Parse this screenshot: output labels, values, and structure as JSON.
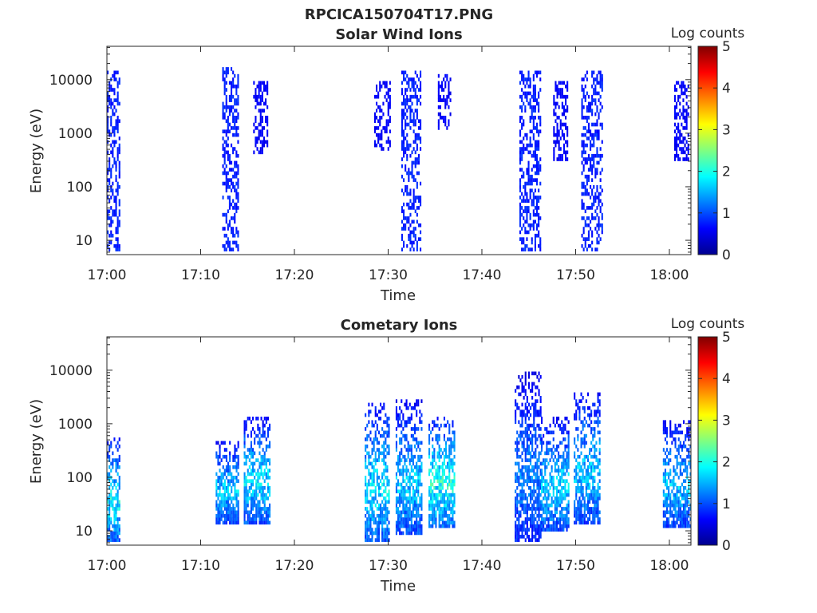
{
  "figure": {
    "title": "RPCICA150704T17.PNG"
  },
  "colormap": [
    "#00008f",
    "#0000ff",
    "#0080ff",
    "#00ffff",
    "#80ff80",
    "#ffff00",
    "#ff8000",
    "#ff0000",
    "#800000"
  ],
  "chart_data": [
    {
      "type": "heatmap",
      "title": "Solar Wind Ions",
      "xlabel": "Time",
      "ylabel": "Energy (eV)",
      "colorbar_label": "Log counts",
      "x_ticks": [
        "17:00",
        "17:10",
        "17:20",
        "17:30",
        "17:40",
        "17:50",
        "18:00"
      ],
      "x_range_minutes": [
        0,
        62.3
      ],
      "y_ticks": [
        10,
        100,
        1000,
        10000
      ],
      "y_tick_labels": [
        "10",
        "100",
        "1000",
        "10000"
      ],
      "y_scale": "log",
      "y_range": [
        5.4,
        42000
      ],
      "colorbar_ticks": [
        "0",
        "1",
        "2",
        "3",
        "4",
        "5"
      ],
      "c_range": [
        0,
        5
      ],
      "bursts": [
        {
          "t_start": 0.0,
          "t_end": 1.4,
          "e_min": 6,
          "e_max": 15000,
          "peak": 0.9
        },
        {
          "t_start": 12.3,
          "t_end": 14.0,
          "e_min": 6,
          "e_max": 17000,
          "peak": 0.9
        },
        {
          "t_start": 15.6,
          "t_end": 17.1,
          "e_min": 400,
          "e_max": 10000,
          "peak": 0.7
        },
        {
          "t_start": 28.5,
          "t_end": 30.2,
          "e_min": 500,
          "e_max": 10000,
          "peak": 0.7
        },
        {
          "t_start": 31.4,
          "t_end": 33.4,
          "e_min": 6,
          "e_max": 15000,
          "peak": 0.9
        },
        {
          "t_start": 35.3,
          "t_end": 36.6,
          "e_min": 1200,
          "e_max": 12000,
          "peak": 0.7
        },
        {
          "t_start": 44.0,
          "t_end": 46.3,
          "e_min": 6,
          "e_max": 15000,
          "peak": 0.9
        },
        {
          "t_start": 47.6,
          "t_end": 49.1,
          "e_min": 300,
          "e_max": 9000,
          "peak": 0.7
        },
        {
          "t_start": 50.6,
          "t_end": 52.9,
          "e_min": 6,
          "e_max": 15000,
          "peak": 0.9
        },
        {
          "t_start": 60.5,
          "t_end": 62.1,
          "e_min": 300,
          "e_max": 9000,
          "peak": 0.7
        }
      ]
    },
    {
      "type": "heatmap",
      "title": "Cometary Ions",
      "xlabel": "Time",
      "ylabel": "Energy (eV)",
      "colorbar_label": "Log counts",
      "x_ticks": [
        "17:00",
        "17:10",
        "17:20",
        "17:30",
        "17:40",
        "17:50",
        "18:00"
      ],
      "x_range_minutes": [
        0,
        62.3
      ],
      "y_ticks": [
        10,
        100,
        1000,
        10000
      ],
      "y_tick_labels": [
        "10",
        "100",
        "1000",
        "10000"
      ],
      "y_scale": "log",
      "y_range": [
        5.4,
        42000
      ],
      "colorbar_ticks": [
        "0",
        "1",
        "2",
        "3",
        "4",
        "5"
      ],
      "c_range": [
        0,
        5
      ],
      "bursts": [
        {
          "t_start": 0.0,
          "t_end": 1.4,
          "e_min": 6,
          "e_max": 600,
          "peak": 2.3
        },
        {
          "t_start": 11.6,
          "t_end": 14.1,
          "e_min": 14,
          "e_max": 500,
          "peak": 2.0
        },
        {
          "t_start": 14.6,
          "t_end": 17.3,
          "e_min": 14,
          "e_max": 1300,
          "peak": 2.2
        },
        {
          "t_start": 27.5,
          "t_end": 30.1,
          "e_min": 6,
          "e_max": 2500,
          "peak": 2.2
        },
        {
          "t_start": 30.8,
          "t_end": 33.6,
          "e_min": 8,
          "e_max": 2700,
          "peak": 2.0
        },
        {
          "t_start": 34.3,
          "t_end": 37.0,
          "e_min": 12,
          "e_max": 1400,
          "peak": 2.5
        },
        {
          "t_start": 43.5,
          "t_end": 46.3,
          "e_min": 6,
          "e_max": 9000,
          "peak": 1.6
        },
        {
          "t_start": 46.3,
          "t_end": 49.3,
          "e_min": 10,
          "e_max": 1300,
          "peak": 2.1
        },
        {
          "t_start": 49.8,
          "t_end": 52.5,
          "e_min": 14,
          "e_max": 4000,
          "peak": 2.0
        },
        {
          "t_start": 59.3,
          "t_end": 62.2,
          "e_min": 12,
          "e_max": 1100,
          "peak": 2.0
        }
      ]
    }
  ]
}
